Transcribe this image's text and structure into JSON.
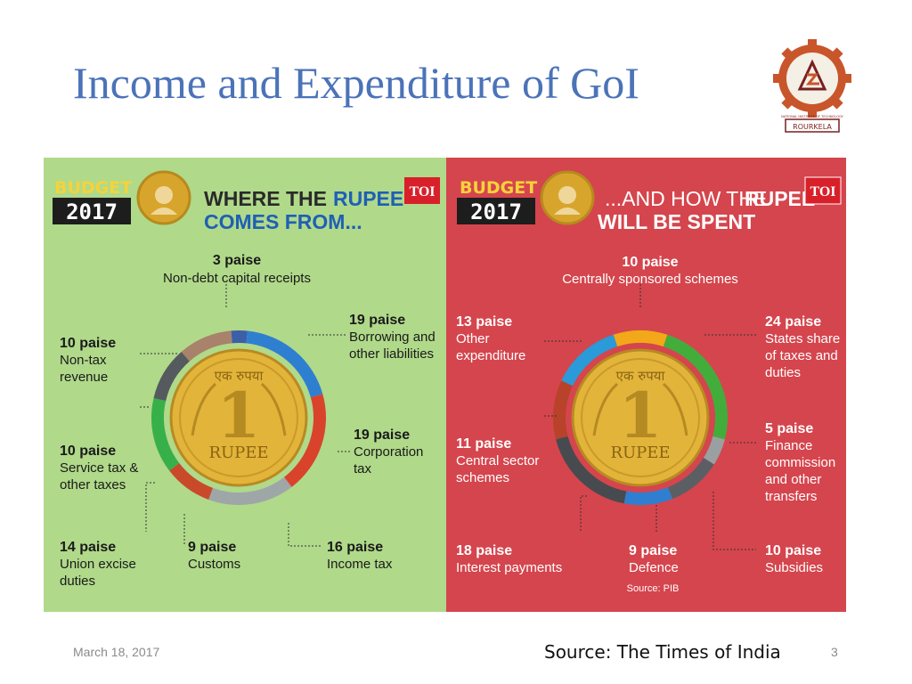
{
  "slide": {
    "title": "Income and Expenditure of GoI",
    "date": "March 18, 2017",
    "source": "Source: The Times of India",
    "page": "3"
  },
  "logo": {
    "text": "NATIONAL INSTITUTE OF TECHNOLOGY",
    "place": "ROURKELA"
  },
  "badge": {
    "budget": "BUDGET",
    "year": "2017",
    "toi": "TOI",
    "coin_top": "एक रुपया",
    "coin_numeral": "1",
    "coin_bottom": "RUPEE"
  },
  "colors": {
    "income_bg": "#b0d98a",
    "spend_bg": "#d5454d",
    "title_blue": "#4b73b8",
    "heading_blue": "#2a6fbe",
    "coin_gold": "#e3b43a"
  },
  "chart_data": [
    {
      "type": "pie",
      "title": "WHERE THE RUPEE COMES FROM...",
      "title_parts": [
        "WHERE THE ",
        "RUPEE",
        "COMES FROM..."
      ],
      "unit": "paise",
      "slices": [
        {
          "label": "Non-debt capital receipts",
          "value": 3,
          "value_text": "3 paise",
          "color": "#3d5fa8"
        },
        {
          "label": "Borrowing and other liabilities",
          "value": 19,
          "value_text": "19 paise",
          "color": "#2f7fd0"
        },
        {
          "label": "Corporation tax",
          "value": 19,
          "value_text": "19 paise",
          "color": "#d9432b"
        },
        {
          "label": "Income tax",
          "value": 16,
          "value_text": "16 paise",
          "color": "#9fa6a8"
        },
        {
          "label": "Customs",
          "value": 9,
          "value_text": "9 paise",
          "color": "#c94a2a"
        },
        {
          "label": "Union excise duties",
          "value": 14,
          "value_text": "14 paise",
          "color": "#38b04a"
        },
        {
          "label": "Service tax & other taxes",
          "value": 10,
          "value_text": "10 paise",
          "color": "#555a5e"
        },
        {
          "label": "Non-tax revenue",
          "value": 10,
          "value_text": "10 paise",
          "color": "#a8826a"
        }
      ]
    },
    {
      "type": "pie",
      "title": "...AND HOW THE RUPEE WILL BE SPENT",
      "title_parts": [
        "...AND HOW THE ",
        "RUPEE",
        "WILL BE SPENT"
      ],
      "unit": "paise",
      "source_note": "Source: PIB",
      "slices": [
        {
          "label": "Centrally sponsored schemes",
          "value": 10,
          "value_text": "10 paise",
          "color": "#f2a818"
        },
        {
          "label": "States share of taxes and duties",
          "value": 24,
          "value_text": "24 paise",
          "color": "#43ad3c"
        },
        {
          "label": "Finance commission and other transfers",
          "value": 5,
          "value_text": "5 paise",
          "color": "#9aa0a2"
        },
        {
          "label": "Subsidies",
          "value": 10,
          "value_text": "10 paise",
          "color": "#5b5f63"
        },
        {
          "label": "Defence",
          "value": 9,
          "value_text": "9 paise",
          "color": "#2f7fd0"
        },
        {
          "label": "Interest payments",
          "value": 18,
          "value_text": "18 paise",
          "color": "#474b4f"
        },
        {
          "label": "Central sector schemes",
          "value": 11,
          "value_text": "11 paise",
          "color": "#b8432a"
        },
        {
          "label": "Other expenditure",
          "value": 13,
          "value_text": "13 paise",
          "color": "#2a9ad8"
        }
      ]
    }
  ]
}
